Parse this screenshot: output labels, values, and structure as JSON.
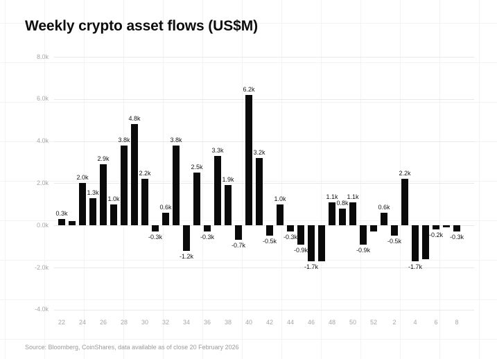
{
  "title": "Weekly crypto asset flows (US$M)",
  "source": "Source: Bloomberg, CoinShares, data available as of close 20 February 2026",
  "colors": {
    "bar": "#0a0a0a",
    "grid": "#e8e8e8",
    "axis": "#a6a6a6",
    "val": "#141414",
    "src": "#9a9a9a",
    "bgline": "#f3f3f3",
    "title": "#0d0d0d"
  },
  "chart_data": {
    "type": "bar",
    "title": "Weekly crypto asset flows (US$M)",
    "xlabel": "",
    "ylabel": "",
    "unit": "US$M",
    "grid": true,
    "ylim_k": [
      -4,
      8
    ],
    "ytick_labels": [
      "8.0k",
      "6.0k",
      "4.0k",
      "2.0k",
      "0.0k",
      "-2.0k",
      "-4.0k"
    ],
    "ytick_values_k": [
      8,
      6,
      4,
      2,
      0,
      -2,
      -4
    ],
    "xtick_labels": [
      "22",
      "24",
      "26",
      "28",
      "30",
      "32",
      "34",
      "36",
      "38",
      "40",
      "42",
      "44",
      "46",
      "48",
      "50",
      "52",
      "2",
      "4",
      "6",
      "8"
    ],
    "categories": [
      22,
      23,
      24,
      25,
      26,
      27,
      28,
      29,
      30,
      31,
      32,
      33,
      34,
      35,
      36,
      37,
      38,
      39,
      40,
      41,
      42,
      43,
      44,
      45,
      46,
      47,
      48,
      49,
      50,
      51,
      52,
      1,
      2,
      3,
      4,
      5,
      6,
      7,
      8
    ],
    "values_k": [
      0.3,
      0.2,
      2.0,
      1.3,
      2.9,
      1.0,
      3.8,
      4.8,
      2.2,
      -0.3,
      0.6,
      3.8,
      -1.2,
      2.5,
      -0.3,
      3.3,
      1.9,
      -0.7,
      6.2,
      3.2,
      -0.5,
      1.0,
      -0.3,
      -0.9,
      -1.7,
      -1.7,
      1.1,
      0.8,
      1.1,
      -0.9,
      -0.3,
      0.6,
      -0.5,
      2.2,
      -1.7,
      -1.6,
      -0.2,
      -0.1,
      -0.3
    ],
    "value_labels": [
      "0.3k",
      "",
      "2.0k",
      "1.3k",
      "2.9k",
      "1.0k",
      "3.8k",
      "4.8k",
      "2.2k",
      "-0.3k",
      "0.6k",
      "3.8k",
      "-1.2k",
      "2.5k",
      "-0.3k",
      "3.3k",
      "1.9k",
      "-0.7k",
      "6.2k",
      "3.2k",
      "-0.5k",
      "1.0k",
      "-0.3k",
      "-0.9k",
      "-1.7k",
      "",
      "1.1k",
      "0.8k",
      "1.1k",
      "-0.9k",
      "",
      "0.6k",
      "-0.5k",
      "2.2k",
      "-1.7k",
      "",
      "-0.2k",
      "",
      "-0.3k"
    ]
  }
}
